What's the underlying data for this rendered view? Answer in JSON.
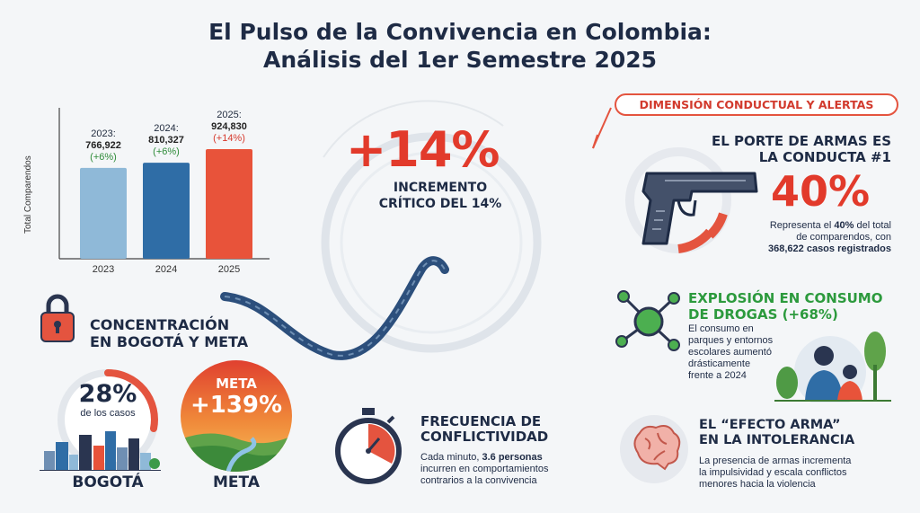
{
  "title": {
    "line1": "El Pulso de la Convivencia en Colombia:",
    "line2": "Análisis del 1er Semestre 2025"
  },
  "chart_data": {
    "type": "bar",
    "ylabel": "Total Comparendos",
    "categories": [
      "2023",
      "2024",
      "2025"
    ],
    "values": [
      766922,
      810327,
      924830
    ],
    "labels": [
      {
        "year": "2023:",
        "value": "766,922",
        "change": "(+6%)"
      },
      {
        "year": "2024:",
        "value": "810,327",
        "change": "(+6%)"
      },
      {
        "year": "2025:",
        "value": "924,830",
        "change": "(+14%)"
      }
    ],
    "colors": [
      "#8fb9d8",
      "#2f6da6",
      "#e8533a"
    ]
  },
  "center": {
    "percent": "+14%",
    "sub1": "INCREMENTO",
    "sub2": "CRÍTICO DEL 14%"
  },
  "concentration": {
    "heading1": "CONCENTRACIÓN",
    "heading2": "EN BOGOTÁ Y META",
    "bogota_pct": "28%",
    "bogota_sub": "de los casos",
    "bogota_label": "BOGOTÁ",
    "meta_top": "META",
    "meta_pct": "+139%",
    "meta_label": "META"
  },
  "frequency": {
    "heading1": "FRECUENCIA DE",
    "heading2": "CONFLICTIVIDAD",
    "body1": "Cada minuto, ",
    "body_bold": "3.6 personas",
    "body2": "incurren en comportamientos",
    "body3": "contrarios a la convivencia"
  },
  "right": {
    "pill": "DIMENSIÓN CONDUCTUAL Y ALERTAS",
    "weapons_h1": "EL PORTE DE ARMAS ES",
    "weapons_h2": "LA CONDUCTA #1",
    "weapons_pct": "40%",
    "weapons_b1a": "Representa el ",
    "weapons_b1b": "40%",
    "weapons_b1c": " del total",
    "weapons_b2": "de comparendos, con",
    "weapons_b3": "368,622 casos registrados",
    "drugs_h1": "EXPLOSIÓN EN CONSUMO",
    "drugs_h2": "DE DROGAS (+68%)",
    "drugs_b1": "El consumo en",
    "drugs_b2": "parques y entornos",
    "drugs_b3": "escolares aumentó",
    "drugs_b4": "drásticamente",
    "drugs_b5": "frente a 2024",
    "effect_h1": "EL “EFECTO ARMA”",
    "effect_h2": "EN LA INTOLERANCIA",
    "effect_b1": "La presencia de armas incrementa",
    "effect_b2": "la impulsividad y escala conflictos",
    "effect_b3": "menores hacia la violencia"
  }
}
